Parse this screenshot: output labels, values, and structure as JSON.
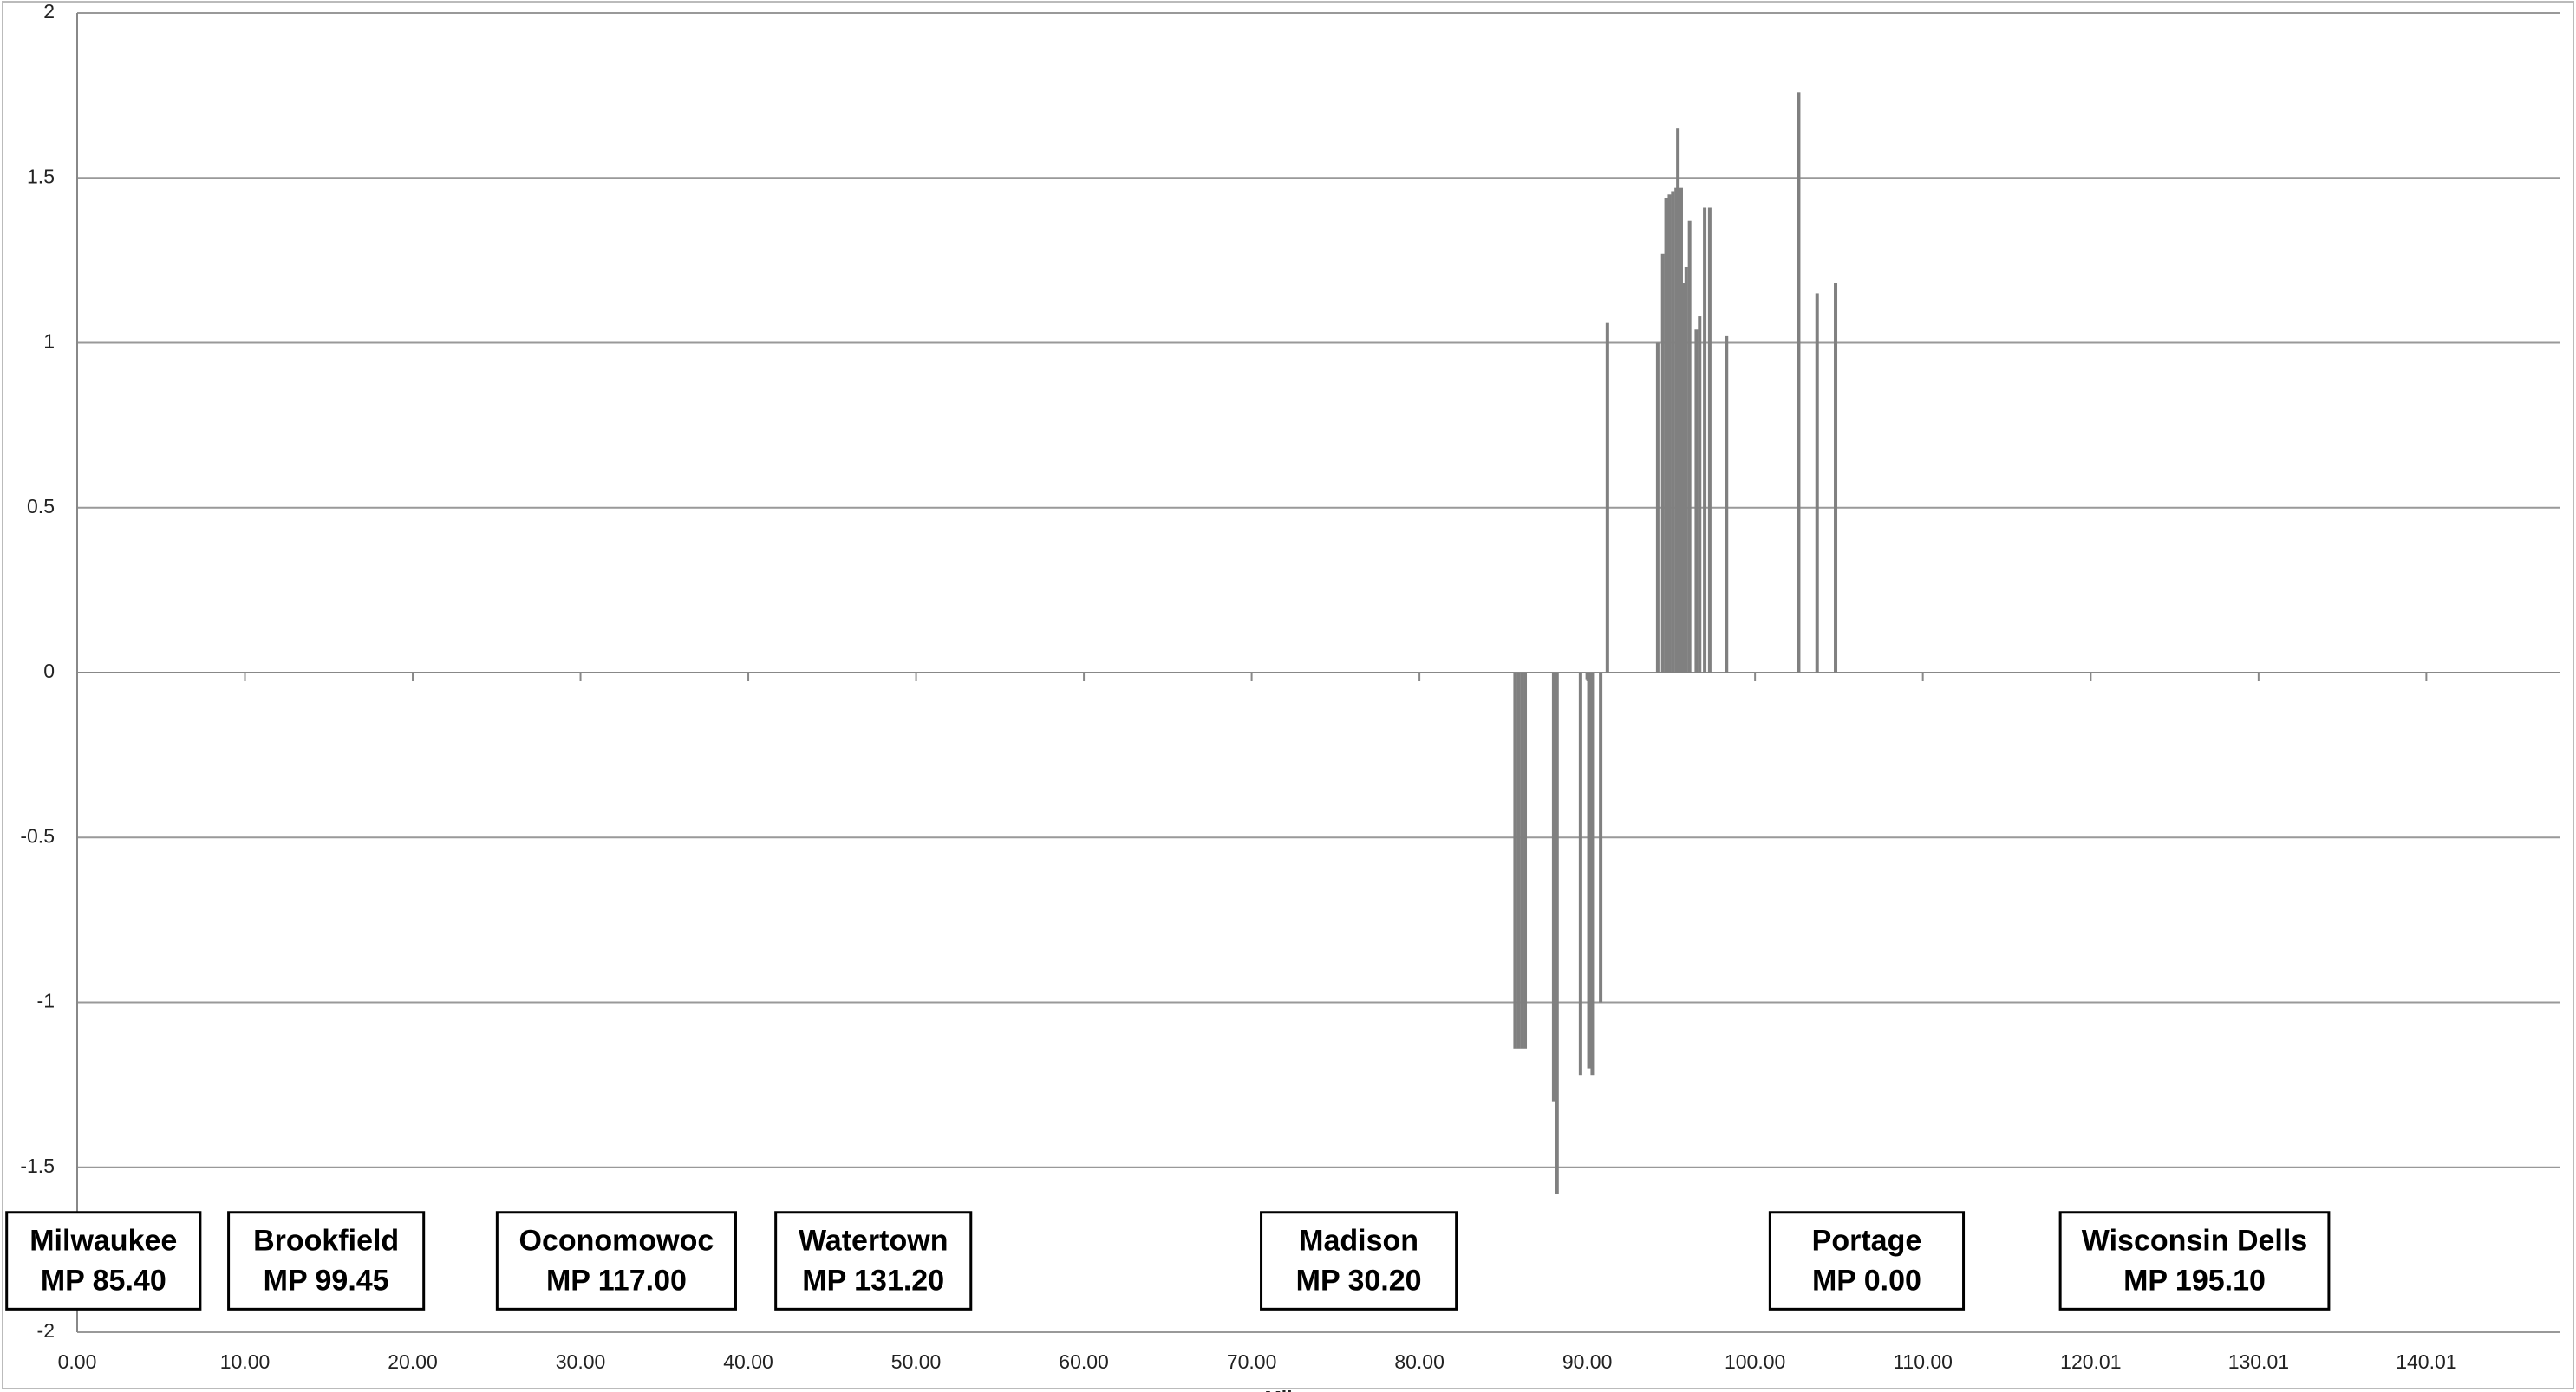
{
  "chart_data": {
    "type": "bar",
    "x_label": "Mile",
    "color": "#808080",
    "x": [
      85.7,
      85.9,
      86.1,
      86.3,
      88.0,
      88.2,
      89.6,
      90.0,
      90.1,
      90.3,
      90.8,
      91.2,
      94.2,
      94.5,
      94.7,
      94.9,
      95.1,
      95.3,
      95.4,
      95.6,
      95.8,
      95.9,
      96.1,
      96.5,
      96.7,
      97.0,
      97.3,
      98.3,
      102.6,
      103.7,
      104.8
    ],
    "values": [
      -1.14,
      -1.14,
      -1.14,
      -1.14,
      -1.3,
      -1.58,
      -1.22,
      -0.02,
      -1.2,
      -1.22,
      -1.0,
      1.06,
      1.0,
      1.27,
      1.44,
      1.45,
      1.46,
      1.47,
      1.65,
      1.47,
      1.18,
      1.23,
      1.37,
      1.04,
      1.08,
      1.41,
      1.41,
      1.02,
      1.76,
      1.15,
      1.18
    ],
    "xlim": [
      0,
      148
    ],
    "xticks": [
      {
        "value": 0,
        "label": "0.00"
      },
      {
        "value": 10,
        "label": "10.00"
      },
      {
        "value": 20,
        "label": "20.00"
      },
      {
        "value": 30,
        "label": "30.00"
      },
      {
        "value": 40,
        "label": "40.00"
      },
      {
        "value": 50,
        "label": "50.00"
      },
      {
        "value": 60,
        "label": "60.00"
      },
      {
        "value": 70,
        "label": "70.00"
      },
      {
        "value": 80,
        "label": "80.00"
      },
      {
        "value": 90,
        "label": "90.00"
      },
      {
        "value": 100,
        "label": "100.00"
      },
      {
        "value": 110,
        "label": "110.00"
      },
      {
        "value": 120.01,
        "label": "120.01"
      },
      {
        "value": 130.01,
        "label": "130.01"
      },
      {
        "value": 140.01,
        "label": "140.01"
      }
    ],
    "ylim": [
      -2,
      2
    ],
    "yticks": [
      -2,
      -1.5,
      -1,
      -0.5,
      0,
      0.5,
      1,
      1.5,
      2
    ],
    "grid": true,
    "annotations": [
      {
        "name": "Milwaukee",
        "mp": "MP 85.40"
      },
      {
        "name": "Brookfield",
        "mp": "MP 99.45"
      },
      {
        "name": "Oconomowoc",
        "mp": "MP 117.00"
      },
      {
        "name": "Watertown",
        "mp": "MP 131.20"
      },
      {
        "name": "Madison",
        "mp": "MP 30.20"
      },
      {
        "name": "Portage",
        "mp": "MP 0.00"
      },
      {
        "name": "Wisconsin Dells",
        "mp": "MP 195.10"
      }
    ]
  }
}
